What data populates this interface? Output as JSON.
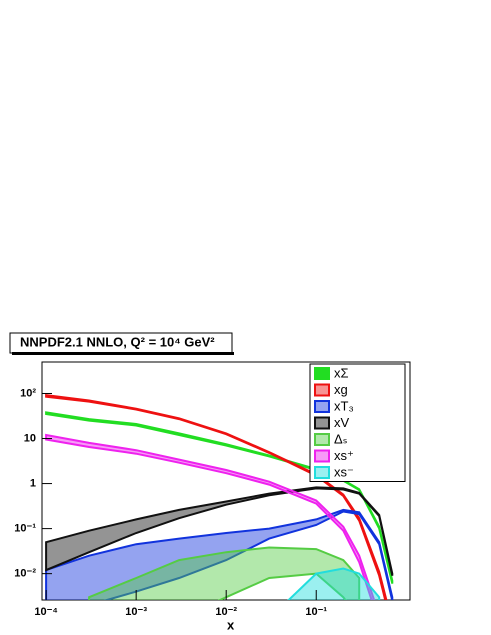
{
  "chart_data": {
    "type": "band",
    "title": "NNPDF2.1 NNLO, Q² = 10⁴ GeV²",
    "x_label": "x",
    "x": [
      0.0001,
      0.0003,
      0.001,
      0.003,
      0.01,
      0.03,
      0.1,
      0.2,
      0.3,
      0.5,
      0.7
    ],
    "xlim": [
      9e-05,
      1.1
    ],
    "ylim": [
      0.0026,
      500
    ],
    "log_x": true,
    "log_y": true,
    "xticks": [
      {
        "value": 0.0001,
        "label": "10⁻⁴"
      },
      {
        "value": 0.001,
        "label": "10⁻³"
      },
      {
        "value": 0.01,
        "label": "10⁻²"
      },
      {
        "value": 0.1,
        "label": "10⁻¹"
      }
    ],
    "yticks": [
      {
        "value": 0.01,
        "label": "10⁻²"
      },
      {
        "value": 0.1,
        "label": "10⁻¹"
      },
      1,
      10,
      {
        "value": 100,
        "label": "10²"
      }
    ],
    "legend": "upper-right",
    "series": [
      {
        "name": "xΣ",
        "color": "#22dd22",
        "upper": [
          38,
          27,
          21,
          13,
          7.5,
          4.2,
          2.1,
          1.2,
          0.75,
          0.11,
          0.007
        ],
        "lower": [
          35,
          25,
          19.5,
          12,
          7,
          4,
          2,
          1.15,
          0.72,
          0.1,
          0.006
        ]
      },
      {
        "name": "xg",
        "color": "#ee1111",
        "upper": [
          92,
          70,
          46,
          28,
          13,
          5,
          1.6,
          0.57,
          0.17,
          0.011,
          0.0008
        ],
        "lower": [
          85,
          66,
          44,
          27,
          12.5,
          4.8,
          1.5,
          0.53,
          0.15,
          0.009,
          0.0006
        ]
      },
      {
        "name": "xT₃",
        "color": "#1133dd",
        "upper": [
          0.012,
          0.025,
          0.045,
          0.06,
          0.08,
          0.1,
          0.16,
          0.26,
          0.23,
          0.05,
          0.003
        ],
        "lower": [
          0.001,
          0.002,
          0.004,
          0.008,
          0.02,
          0.06,
          0.12,
          0.24,
          0.21,
          0.045,
          0.0025
        ]
      },
      {
        "name": "xV",
        "color": "#111111",
        "upper": [
          0.05,
          0.09,
          0.16,
          0.26,
          0.4,
          0.6,
          0.82,
          0.78,
          0.62,
          0.2,
          0.01
        ],
        "lower": [
          0.012,
          0.03,
          0.08,
          0.17,
          0.34,
          0.55,
          0.78,
          0.74,
          0.6,
          0.19,
          0.009
        ]
      },
      {
        "name": "Δₛ",
        "color": "#55cc44",
        "upper": [
          null,
          0.003,
          0.008,
          0.02,
          0.03,
          0.038,
          0.035,
          0.02,
          0.008,
          null,
          null
        ],
        "lower": [
          null,
          0.001,
          0.001,
          0.001,
          0.003,
          0.008,
          0.01,
          0.003,
          0.001,
          null,
          null
        ]
      },
      {
        "name": "xs⁺",
        "color": "#ee22ee",
        "upper": [
          12,
          8,
          5.5,
          3.4,
          2,
          1.1,
          0.42,
          0.11,
          0.025,
          0.0012,
          null
        ],
        "lower": [
          9.5,
          6.5,
          4.6,
          2.9,
          1.7,
          0.95,
          0.36,
          0.09,
          0.018,
          0.0008,
          null
        ]
      },
      {
        "name": "xs⁻",
        "color": "#22dddd",
        "upper": [
          null,
          null,
          null,
          null,
          null,
          0.001,
          0.01,
          0.013,
          0.01,
          0.003,
          null
        ],
        "lower": [
          null,
          null,
          null,
          null,
          null,
          0.0005,
          0.001,
          0.001,
          0.001,
          0.001,
          null
        ]
      }
    ]
  }
}
